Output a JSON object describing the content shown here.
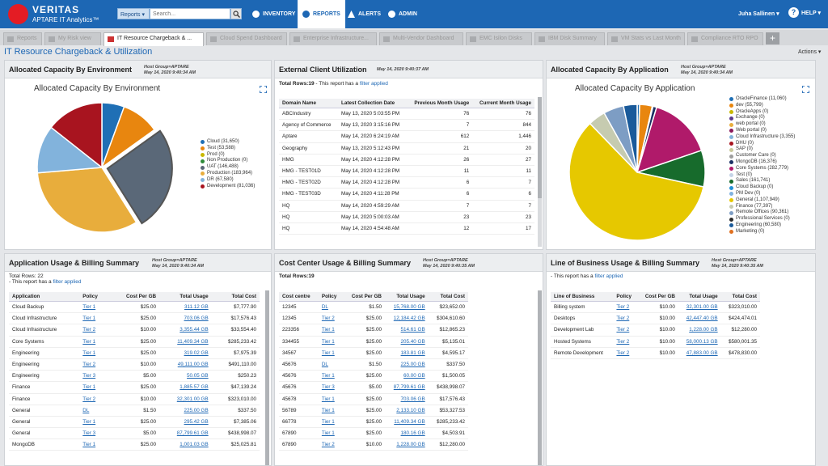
{
  "app": {
    "logo_line1": "VERITAS",
    "logo_line2": "APTARE IT Analytics™"
  },
  "header": {
    "reports_dropdown": "Reports ▾",
    "search_placeholder": "Search...",
    "nav": {
      "inventory": "INVENTORY",
      "reports": "REPORTS",
      "alerts": "ALERTS",
      "admin": "ADMIN"
    },
    "user": "Juha Sallinen ▾",
    "help": "HELP ▾"
  },
  "tabs": [
    "Reports",
    "My Risk view",
    "IT Resource Chargeback & ...",
    "Cloud Spend Dashboard",
    "Enterprise Infrastructure...",
    "Multi-Vendor Dashboard",
    "EMC Isilon Disks",
    "IBM Disk Summary",
    "VM Stats vs Last Month",
    "Compliance RTO RPO"
  ],
  "tab_plus": "+",
  "page": {
    "title": "IT Resource Chargeback & Utilization",
    "actions": "Actions ▾"
  },
  "panels": {
    "env": {
      "title": "Allocated Capacity By Environment",
      "meta1": "Host Group=APTARE",
      "meta2": "May 14, 2020 9:40:34 AM",
      "chart_title": "Allocated Capacity By Environment"
    },
    "ext": {
      "title": "External Client Utilization",
      "meta1": "May 14, 2020 9:40:37 AM",
      "total_rows": "Total Rows:19",
      "filter_prefix": "- This report has a",
      "filter_link": "filter applied",
      "columns": [
        "Domain Name",
        "Latest Collection Date",
        "Previous Month Usage",
        "Current Month Usage"
      ],
      "rows": [
        [
          "ABCIndustry",
          "May 13, 2020 5:03:55 PM",
          "76",
          "76"
        ],
        [
          "Agency of Commerce",
          "May 13, 2020 3:15:16 PM",
          "7",
          "844"
        ],
        [
          "Aptare",
          "May 14, 2020 6:24:19 AM",
          "612",
          "1,446"
        ],
        [
          "Geography",
          "May 13, 2020 5:12:43 PM",
          "21",
          "20"
        ],
        [
          "HMG",
          "May 14, 2020 4:12:28 PM",
          "26",
          "27"
        ],
        [
          "HMG - TEST01D",
          "May 14, 2020 4:12:28 PM",
          "11",
          "11"
        ],
        [
          "HMG - TEST02D",
          "May 14, 2020 4:12:28 PM",
          "6",
          "7"
        ],
        [
          "HMG - TEST03D",
          "May 14, 2020 4:11:28 PM",
          "6",
          "6"
        ],
        [
          "HQ",
          "May 14, 2020 4:59:29 AM",
          "7",
          "7"
        ],
        [
          "HQ",
          "May 14, 2020 5:00:03 AM",
          "23",
          "23"
        ],
        [
          "HQ",
          "May 14, 2020 4:54:48 AM",
          "12",
          "17"
        ]
      ]
    },
    "app": {
      "title": "Allocated Capacity By Application",
      "meta1": "Host Group=APTARE",
      "meta2": "May 14, 2020 9:40:34 AM",
      "chart_title": "Allocated Capacity By Application"
    },
    "appuse": {
      "title": "Application Usage & Billing Summary",
      "meta1": "Host Group=APTARE",
      "meta2": "May 14, 2020 9:40:34 AM",
      "total_rows": "Total Rows: 22",
      "filter_prefix": "- This report has a",
      "filter_link": "filter applied",
      "columns": [
        "Application",
        "Policy",
        "Cost Per GB",
        "Total Usage",
        "Total Cost"
      ],
      "rows": [
        [
          "Cloud Backup",
          "Tier 1",
          "$25.00",
          "311.12 GB",
          "$7,777.90"
        ],
        [
          "Cloud Infrastructure",
          "Tier 1",
          "$25.00",
          "703.06 GB",
          "$17,576.43"
        ],
        [
          "Cloud Infrastructure",
          "Tier 2",
          "$10.00",
          "3,355.44 GB",
          "$33,554.40"
        ],
        [
          "Core Systems",
          "Tier 1",
          "$25.00",
          "11,409.34 GB",
          "$285,233.42"
        ],
        [
          "Engineering",
          "Tier 1",
          "$25.00",
          "319.02 GB",
          "$7,975.39"
        ],
        [
          "Engineering",
          "Tier 2",
          "$10.00",
          "49,111.00 GB",
          "$491,110.00"
        ],
        [
          "Engineering",
          "Tier 3",
          "$5.00",
          "50.05 GB",
          "$250.23"
        ],
        [
          "Finance",
          "Tier 1",
          "$25.00",
          "1,885.57 GB",
          "$47,139.24"
        ],
        [
          "Finance",
          "Tier 2",
          "$10.00",
          "32,301.00 GB",
          "$323,010.00"
        ],
        [
          "General",
          "DL",
          "$1.50",
          "225.00 GB",
          "$337.50"
        ],
        [
          "General",
          "Tier 1",
          "$25.00",
          "295.42 GB",
          "$7,385.06"
        ],
        [
          "General",
          "Tier 3",
          "$5.00",
          "87,799.61 GB",
          "$438,998.07"
        ],
        [
          "MongoDB",
          "Tier 1",
          "$25.00",
          "1,001.03 GB",
          "$25,025.81"
        ]
      ]
    },
    "cost": {
      "title": "Cost Center Usage & Billing Summary",
      "meta1": "Host Group=APTARE",
      "meta2": "May 14, 2020 9:40:35 AM",
      "total_rows": "Total Rows:19",
      "columns": [
        "Cost centre",
        "Policy",
        "Cost Per GB",
        "Total Usage",
        "Total Cost"
      ],
      "rows": [
        [
          "12345",
          "DL",
          "$1.50",
          "15,768.00 GB",
          "$23,652.00"
        ],
        [
          "12345",
          "Tier 2",
          "$25.00",
          "12,184.42 GB",
          "$304,610.60"
        ],
        [
          "223356",
          "Tier 1",
          "$25.00",
          "514.61 GB",
          "$12,865.23"
        ],
        [
          "334455",
          "Tier 1",
          "$25.00",
          "205.40 GB",
          "$5,135.01"
        ],
        [
          "34567",
          "Tier 1",
          "$25.00",
          "183.81 GB",
          "$4,595.17"
        ],
        [
          "45676",
          "DL",
          "$1.50",
          "225.00 GB",
          "$337.50"
        ],
        [
          "45676",
          "Tier 1",
          "$25.00",
          "60.00 GB",
          "$1,500.05"
        ],
        [
          "45676",
          "Tier 3",
          "$5.00",
          "87,799.61 GB",
          "$438,998.07"
        ],
        [
          "45678",
          "Tier 1",
          "$25.00",
          "703.06 GB",
          "$17,576.43"
        ],
        [
          "56789",
          "Tier 1",
          "$25.00",
          "2,133.10 GB",
          "$53,327.53"
        ],
        [
          "66778",
          "Tier 1",
          "$25.00",
          "11,409.34 GB",
          "$285,233.42"
        ],
        [
          "67890",
          "Tier 1",
          "$25.00",
          "180.16 GB",
          "$4,503.91"
        ],
        [
          "67890",
          "Tier 2",
          "$10.00",
          "1,228.00 GB",
          "$12,280.00"
        ]
      ]
    },
    "lob": {
      "title": "Line of Business Usage & Billing Summary",
      "meta1": "Host Group=APTARE",
      "meta2": "May 14, 2020 9:40:35 AM",
      "filter_prefix": "- This report has a",
      "filter_link": "filter applied",
      "columns": [
        "Line of Business",
        "Policy",
        "Cost Per GB",
        "Total Usage",
        "Total Cost"
      ],
      "rows": [
        [
          "Billing system",
          "Tier 2",
          "$10.00",
          "32,301.00 GB",
          "$323,010.00"
        ],
        [
          "Desktops",
          "Tier 2",
          "$10.00",
          "42,447.40 GB",
          "$424,474.01"
        ],
        [
          "Development Lab",
          "Tier 2",
          "$10.00",
          "1,228.00 GB",
          "$12,280.00"
        ],
        [
          "Hosted Systems",
          "Tier 2",
          "$10.00",
          "58,000.13 GB",
          "$580,001.35"
        ],
        [
          "Remote Development",
          "Tier 2",
          "$10.00",
          "47,883.00 GB",
          "$478,830.00"
        ]
      ]
    }
  },
  "chart_data": [
    {
      "type": "pie",
      "title": "Allocated Capacity By Environment",
      "slices": [
        {
          "label": "Cloud (31,650)",
          "value": 31650,
          "color": "#1f6fb5"
        },
        {
          "label": "Test (53,588)",
          "value": 53588,
          "color": "#e8860f"
        },
        {
          "label": "Prod (0)",
          "value": 0,
          "color": "#c9b800"
        },
        {
          "label": "Non Production (0)",
          "value": 0,
          "color": "#2e8b3a"
        },
        {
          "label": "UAT (146,488)",
          "value": 146488,
          "color": "#5a6878"
        },
        {
          "label": "Production (183,964)",
          "value": 183964,
          "color": "#e8ad3c"
        },
        {
          "label": "DR (67,580)",
          "value": 67580,
          "color": "#82b3dc"
        },
        {
          "label": "Development (81,036)",
          "value": 81036,
          "color": "#a8141f"
        }
      ],
      "exploded": "UAT (146,488)",
      "legend": "right"
    },
    {
      "type": "pie",
      "title": "Allocated Capacity By Application",
      "slices": [
        {
          "label": "OracleFinance (11,060)",
          "value": 11060,
          "color": "#1f6fb5"
        },
        {
          "label": "dev (55,799)",
          "value": 55799,
          "color": "#e8860f"
        },
        {
          "label": "OracleApps (0)",
          "value": 0,
          "color": "#c9b800"
        },
        {
          "label": "Exchange (0)",
          "value": 0,
          "color": "#5b3a8c"
        },
        {
          "label": "web portal (0)",
          "value": 0,
          "color": "#e8ad3c"
        },
        {
          "label": "Web portal (0)",
          "value": 0,
          "color": "#8a1a5c"
        },
        {
          "label": "Cloud Infrastructure (3,355)",
          "value": 3355,
          "color": "#82b3dc"
        },
        {
          "label": "DHU (0)",
          "value": 0,
          "color": "#a8141f"
        },
        {
          "label": "SAP (0)",
          "value": 0,
          "color": "#c9c99b"
        },
        {
          "label": "Customer Care (0)",
          "value": 0,
          "color": "#9e9e9e"
        },
        {
          "label": "MongoDB (16,376)",
          "value": 16376,
          "color": "#1a2f63"
        },
        {
          "label": "Core Systems (282,779)",
          "value": 282779,
          "color": "#b01a6a"
        },
        {
          "label": "Test (0)",
          "value": 0,
          "color": "#c4d3e6"
        },
        {
          "label": "Sales (161,741)",
          "value": 161741,
          "color": "#176b2c"
        },
        {
          "label": "Cloud Backup (0)",
          "value": 0,
          "color": "#2390d6"
        },
        {
          "label": "PM Dev (0)",
          "value": 0,
          "color": "#7fb2e0"
        },
        {
          "label": "General (1,107,949)",
          "value": 1107949,
          "color": "#e6c800"
        },
        {
          "label": "Finance (77,397)",
          "value": 77397,
          "color": "#c6cbb0"
        },
        {
          "label": "Remote Offices (90,361)",
          "value": 90361,
          "color": "#7d9dc4"
        },
        {
          "label": "Professional Services (0)",
          "value": 0,
          "color": "#2a2a2a"
        },
        {
          "label": "Engineering (60,580)",
          "value": 60580,
          "color": "#1a5a9a"
        },
        {
          "label": "Marketing (0)",
          "value": 0,
          "color": "#e07020"
        }
      ],
      "legend": "right"
    }
  ]
}
